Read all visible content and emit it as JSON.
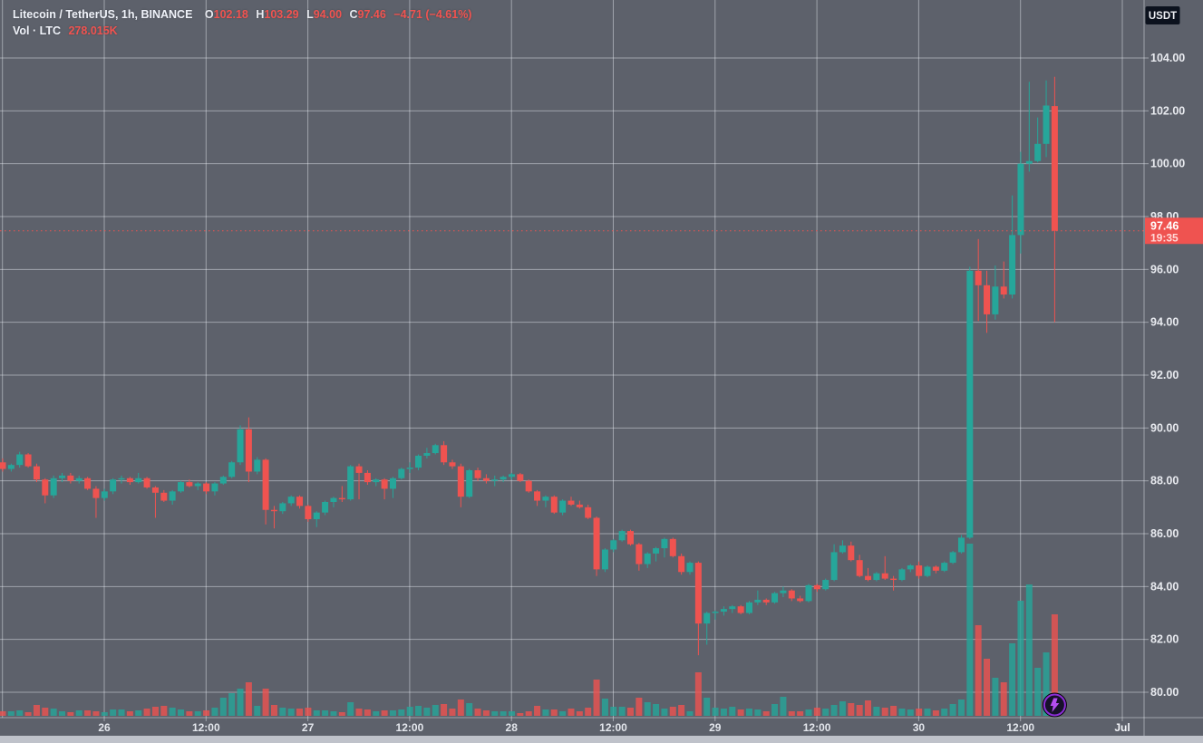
{
  "legend": {
    "title": "Litecoin / TetherUS, 1h, BINANCE",
    "o_label": "O",
    "o_value": "102.18",
    "h_label": "H",
    "h_value": "103.29",
    "l_label": "L",
    "l_value": "94.00",
    "c_label": "C",
    "c_value": "97.46",
    "change": "−4.71 (−4.61%)",
    "vol_label": "Vol · LTC",
    "vol_value": "278.015K"
  },
  "colors": {
    "background": "#5d616b",
    "up": "#26a69a",
    "down": "#ef5350",
    "grid": "rgba(240,243,250,0.45)",
    "axis_text": "#e8eaef",
    "time_text": "#e4e7ed",
    "last_price_bg": "#ef5350",
    "last_price_text": "#ffffff",
    "countdown_text": "#ffd9d7",
    "unit_badge_bg": "#0c121e",
    "unit_badge_text": "#edeff4",
    "bottom_strip": "#bfc2ca",
    "badge_ring": "#8b2fd6",
    "badge_fill": "#17112a",
    "badge_bolt": "#b44df0"
  },
  "chart_data": {
    "type": "candlestick+volume",
    "title": "Litecoin / TetherUS, 1h, BINANCE",
    "exchange": "BINANCE",
    "interval": "1h",
    "legend_position": "top-left",
    "grid": "on",
    "y_axis": {
      "unit_badge": "USDT",
      "tick_labels": [
        "104.00",
        "102.00",
        "100.00",
        "98.00",
        "96.00",
        "94.00",
        "92.00",
        "90.00",
        "88.00",
        "86.00",
        "84.00",
        "82.00",
        "80.00"
      ],
      "tick_step": 2,
      "visible_range_min": 79.0,
      "visible_range_max": 106.2
    },
    "x_axis": {
      "tick_labels": [
        "26",
        "12:00",
        "27",
        "12:00",
        "28",
        "12:00",
        "29",
        "12:00",
        "30",
        "12:00",
        "Jul"
      ],
      "ticks_per_label_hours": 12
    },
    "last_price": {
      "value": 97.46,
      "label": "97.46",
      "countdown": "19:35"
    },
    "ohlc_note": "candles are hourly, format [open, high, low, close, vol_rel]; vol_rel is relative volume bar height",
    "candles": [
      [
        88.7,
        88.85,
        88.35,
        88.45,
        5
      ],
      [
        88.45,
        88.65,
        88.35,
        88.6,
        5
      ],
      [
        88.6,
        89.1,
        88.5,
        89.0,
        6
      ],
      [
        89.0,
        89.05,
        88.5,
        88.55,
        4
      ],
      [
        88.55,
        88.65,
        87.95,
        88.05,
        12
      ],
      [
        88.05,
        88.1,
        87.15,
        87.45,
        9
      ],
      [
        87.45,
        88.2,
        87.35,
        88.1,
        8
      ],
      [
        88.1,
        88.3,
        87.95,
        88.2,
        5
      ],
      [
        88.2,
        88.3,
        87.9,
        88.0,
        4
      ],
      [
        88.0,
        88.2,
        87.9,
        88.1,
        6
      ],
      [
        88.1,
        88.15,
        87.65,
        87.7,
        6
      ],
      [
        87.7,
        87.8,
        86.6,
        87.35,
        5
      ],
      [
        87.35,
        87.7,
        87.25,
        87.6,
        4
      ],
      [
        87.6,
        88.1,
        87.5,
        88.05,
        7
      ],
      [
        88.05,
        88.2,
        87.9,
        88.1,
        7
      ],
      [
        88.1,
        88.15,
        87.85,
        87.95,
        5
      ],
      [
        87.95,
        88.3,
        87.9,
        88.1,
        6
      ],
      [
        88.1,
        88.15,
        87.7,
        87.75,
        8
      ],
      [
        87.75,
        87.8,
        86.6,
        87.55,
        10
      ],
      [
        87.55,
        87.65,
        87.2,
        87.25,
        11
      ],
      [
        87.25,
        87.65,
        87.1,
        87.6,
        9
      ],
      [
        87.6,
        88.0,
        87.55,
        87.95,
        7
      ],
      [
        87.95,
        88.05,
        87.75,
        87.8,
        5
      ],
      [
        87.8,
        87.95,
        87.65,
        87.9,
        5
      ],
      [
        87.9,
        87.95,
        87.5,
        87.6,
        6
      ],
      [
        87.6,
        87.95,
        87.45,
        87.9,
        9
      ],
      [
        87.9,
        88.2,
        87.85,
        88.15,
        20
      ],
      [
        88.15,
        88.75,
        88.1,
        88.7,
        25
      ],
      [
        88.7,
        90.1,
        88.6,
        89.95,
        30
      ],
      [
        89.95,
        90.4,
        87.95,
        88.35,
        37
      ],
      [
        88.35,
        88.9,
        88.25,
        88.8,
        11
      ],
      [
        88.8,
        88.85,
        86.35,
        86.9,
        30
      ],
      [
        86.9,
        87.05,
        86.2,
        86.85,
        12
      ],
      [
        86.85,
        87.2,
        86.75,
        87.15,
        9
      ],
      [
        87.15,
        87.45,
        87.05,
        87.4,
        8
      ],
      [
        87.4,
        87.45,
        86.95,
        87.05,
        8
      ],
      [
        87.05,
        87.1,
        86.45,
        86.55,
        9
      ],
      [
        86.55,
        86.85,
        86.25,
        86.8,
        6
      ],
      [
        86.8,
        87.25,
        86.7,
        87.2,
        6
      ],
      [
        87.2,
        87.4,
        87.0,
        87.35,
        5
      ],
      [
        87.35,
        87.8,
        87.2,
        87.3,
        4
      ],
      [
        87.3,
        88.6,
        87.25,
        88.55,
        15
      ],
      [
        88.55,
        88.65,
        87.3,
        88.3,
        8
      ],
      [
        88.3,
        88.4,
        87.85,
        87.95,
        7
      ],
      [
        87.95,
        88.1,
        87.8,
        88.05,
        5
      ],
      [
        88.05,
        88.1,
        87.3,
        87.7,
        6
      ],
      [
        87.7,
        88.15,
        87.35,
        88.1,
        6
      ],
      [
        88.1,
        88.5,
        88.05,
        88.45,
        7
      ],
      [
        88.45,
        88.7,
        88.3,
        88.5,
        10
      ],
      [
        88.5,
        89.0,
        88.4,
        88.95,
        11
      ],
      [
        88.95,
        89.25,
        88.85,
        89.05,
        9
      ],
      [
        89.05,
        89.4,
        89.0,
        89.35,
        12
      ],
      [
        89.35,
        89.5,
        88.6,
        88.7,
        13
      ],
      [
        88.7,
        88.8,
        88.45,
        88.55,
        8
      ],
      [
        88.55,
        88.65,
        87.0,
        87.4,
        18
      ],
      [
        87.4,
        88.45,
        87.35,
        88.4,
        14
      ],
      [
        88.4,
        88.5,
        88.0,
        88.1,
        8
      ],
      [
        88.1,
        88.25,
        87.9,
        88.0,
        6
      ],
      [
        88.0,
        88.2,
        87.8,
        88.05,
        5
      ],
      [
        88.05,
        88.2,
        87.95,
        88.15,
        5
      ],
      [
        88.15,
        88.3,
        88.05,
        88.25,
        5
      ],
      [
        88.25,
        88.3,
        87.95,
        88.0,
        3
      ],
      [
        88.0,
        88.05,
        87.55,
        87.6,
        5
      ],
      [
        87.6,
        87.65,
        87.05,
        87.25,
        11
      ],
      [
        87.25,
        87.45,
        87.0,
        87.4,
        7
      ],
      [
        87.4,
        87.45,
        86.75,
        86.8,
        7
      ],
      [
        86.8,
        87.3,
        86.7,
        87.25,
        5
      ],
      [
        87.25,
        87.4,
        87.05,
        87.1,
        8
      ],
      [
        87.1,
        87.25,
        86.95,
        87.0,
        5
      ],
      [
        87.0,
        87.1,
        86.55,
        86.6,
        9
      ],
      [
        86.6,
        86.65,
        84.4,
        84.65,
        40
      ],
      [
        84.65,
        85.45,
        84.55,
        85.4,
        19
      ],
      [
        85.4,
        85.8,
        85.3,
        85.75,
        10
      ],
      [
        85.75,
        86.15,
        85.7,
        86.1,
        10
      ],
      [
        86.1,
        86.15,
        85.55,
        85.6,
        9
      ],
      [
        85.6,
        85.65,
        84.6,
        84.85,
        20
      ],
      [
        84.85,
        85.3,
        84.7,
        85.25,
        15
      ],
      [
        85.25,
        85.5,
        84.95,
        85.45,
        13
      ],
      [
        85.45,
        85.85,
        85.1,
        85.8,
        8
      ],
      [
        85.8,
        85.85,
        85.1,
        85.15,
        10
      ],
      [
        85.15,
        85.25,
        84.45,
        84.55,
        12
      ],
      [
        84.55,
        84.95,
        84.45,
        84.9,
        5
      ],
      [
        84.9,
        84.95,
        81.4,
        82.6,
        48
      ],
      [
        82.6,
        83.05,
        81.8,
        83.0,
        20
      ],
      [
        83.0,
        83.1,
        82.75,
        83.05,
        9
      ],
      [
        83.05,
        83.25,
        82.9,
        83.15,
        8
      ],
      [
        83.15,
        83.3,
        83.0,
        83.25,
        10
      ],
      [
        83.25,
        83.3,
        82.95,
        83.0,
        7
      ],
      [
        83.0,
        83.45,
        82.95,
        83.4,
        8
      ],
      [
        83.4,
        83.85,
        83.3,
        83.5,
        7
      ],
      [
        83.5,
        83.55,
        83.3,
        83.4,
        5
      ],
      [
        83.4,
        83.8,
        83.35,
        83.75,
        13
      ],
      [
        83.75,
        84.0,
        83.6,
        83.85,
        21
      ],
      [
        83.85,
        83.9,
        83.45,
        83.55,
        5
      ],
      [
        83.55,
        83.65,
        83.4,
        83.45,
        5
      ],
      [
        83.45,
        84.1,
        83.4,
        84.05,
        7
      ],
      [
        84.05,
        84.1,
        83.8,
        83.9,
        9
      ],
      [
        83.9,
        84.3,
        83.85,
        84.25,
        8
      ],
      [
        84.25,
        85.6,
        84.2,
        85.3,
        12
      ],
      [
        85.3,
        85.75,
        85.25,
        85.55,
        16
      ],
      [
        85.55,
        85.7,
        84.95,
        85.0,
        14
      ],
      [
        85.0,
        85.2,
        84.35,
        84.4,
        12
      ],
      [
        84.4,
        84.7,
        84.2,
        84.25,
        17
      ],
      [
        84.25,
        84.55,
        84.2,
        84.5,
        10
      ],
      [
        84.5,
        85.15,
        84.25,
        84.3,
        9
      ],
      [
        84.3,
        84.4,
        83.85,
        84.25,
        11
      ],
      [
        84.25,
        84.7,
        84.2,
        84.65,
        8
      ],
      [
        84.65,
        84.85,
        84.55,
        84.8,
        7
      ],
      [
        84.8,
        84.95,
        84.3,
        84.4,
        8
      ],
      [
        84.4,
        84.8,
        84.35,
        84.75,
        8
      ],
      [
        84.75,
        84.8,
        84.5,
        84.6,
        6
      ],
      [
        84.6,
        84.95,
        84.55,
        84.9,
        8
      ],
      [
        84.9,
        85.35,
        84.85,
        85.3,
        13
      ],
      [
        85.3,
        85.95,
        85.25,
        85.85,
        18
      ],
      [
        85.85,
        96.1,
        85.8,
        95.95,
        190
      ],
      [
        95.95,
        97.15,
        94.05,
        95.4,
        100
      ],
      [
        95.4,
        95.95,
        93.6,
        94.3,
        63
      ],
      [
        94.3,
        96.15,
        94.1,
        95.35,
        42
      ],
      [
        95.35,
        96.3,
        94.9,
        95.05,
        37
      ],
      [
        95.05,
        98.8,
        94.9,
        97.3,
        80
      ],
      [
        97.3,
        100.45,
        96.6,
        100.0,
        127
      ],
      [
        100.0,
        103.1,
        99.7,
        100.1,
        145
      ],
      [
        100.1,
        101.75,
        100.05,
        100.75,
        53
      ],
      [
        100.75,
        103.15,
        100.25,
        102.2,
        70
      ],
      [
        102.18,
        103.29,
        94.0,
        97.46,
        112
      ]
    ]
  }
}
